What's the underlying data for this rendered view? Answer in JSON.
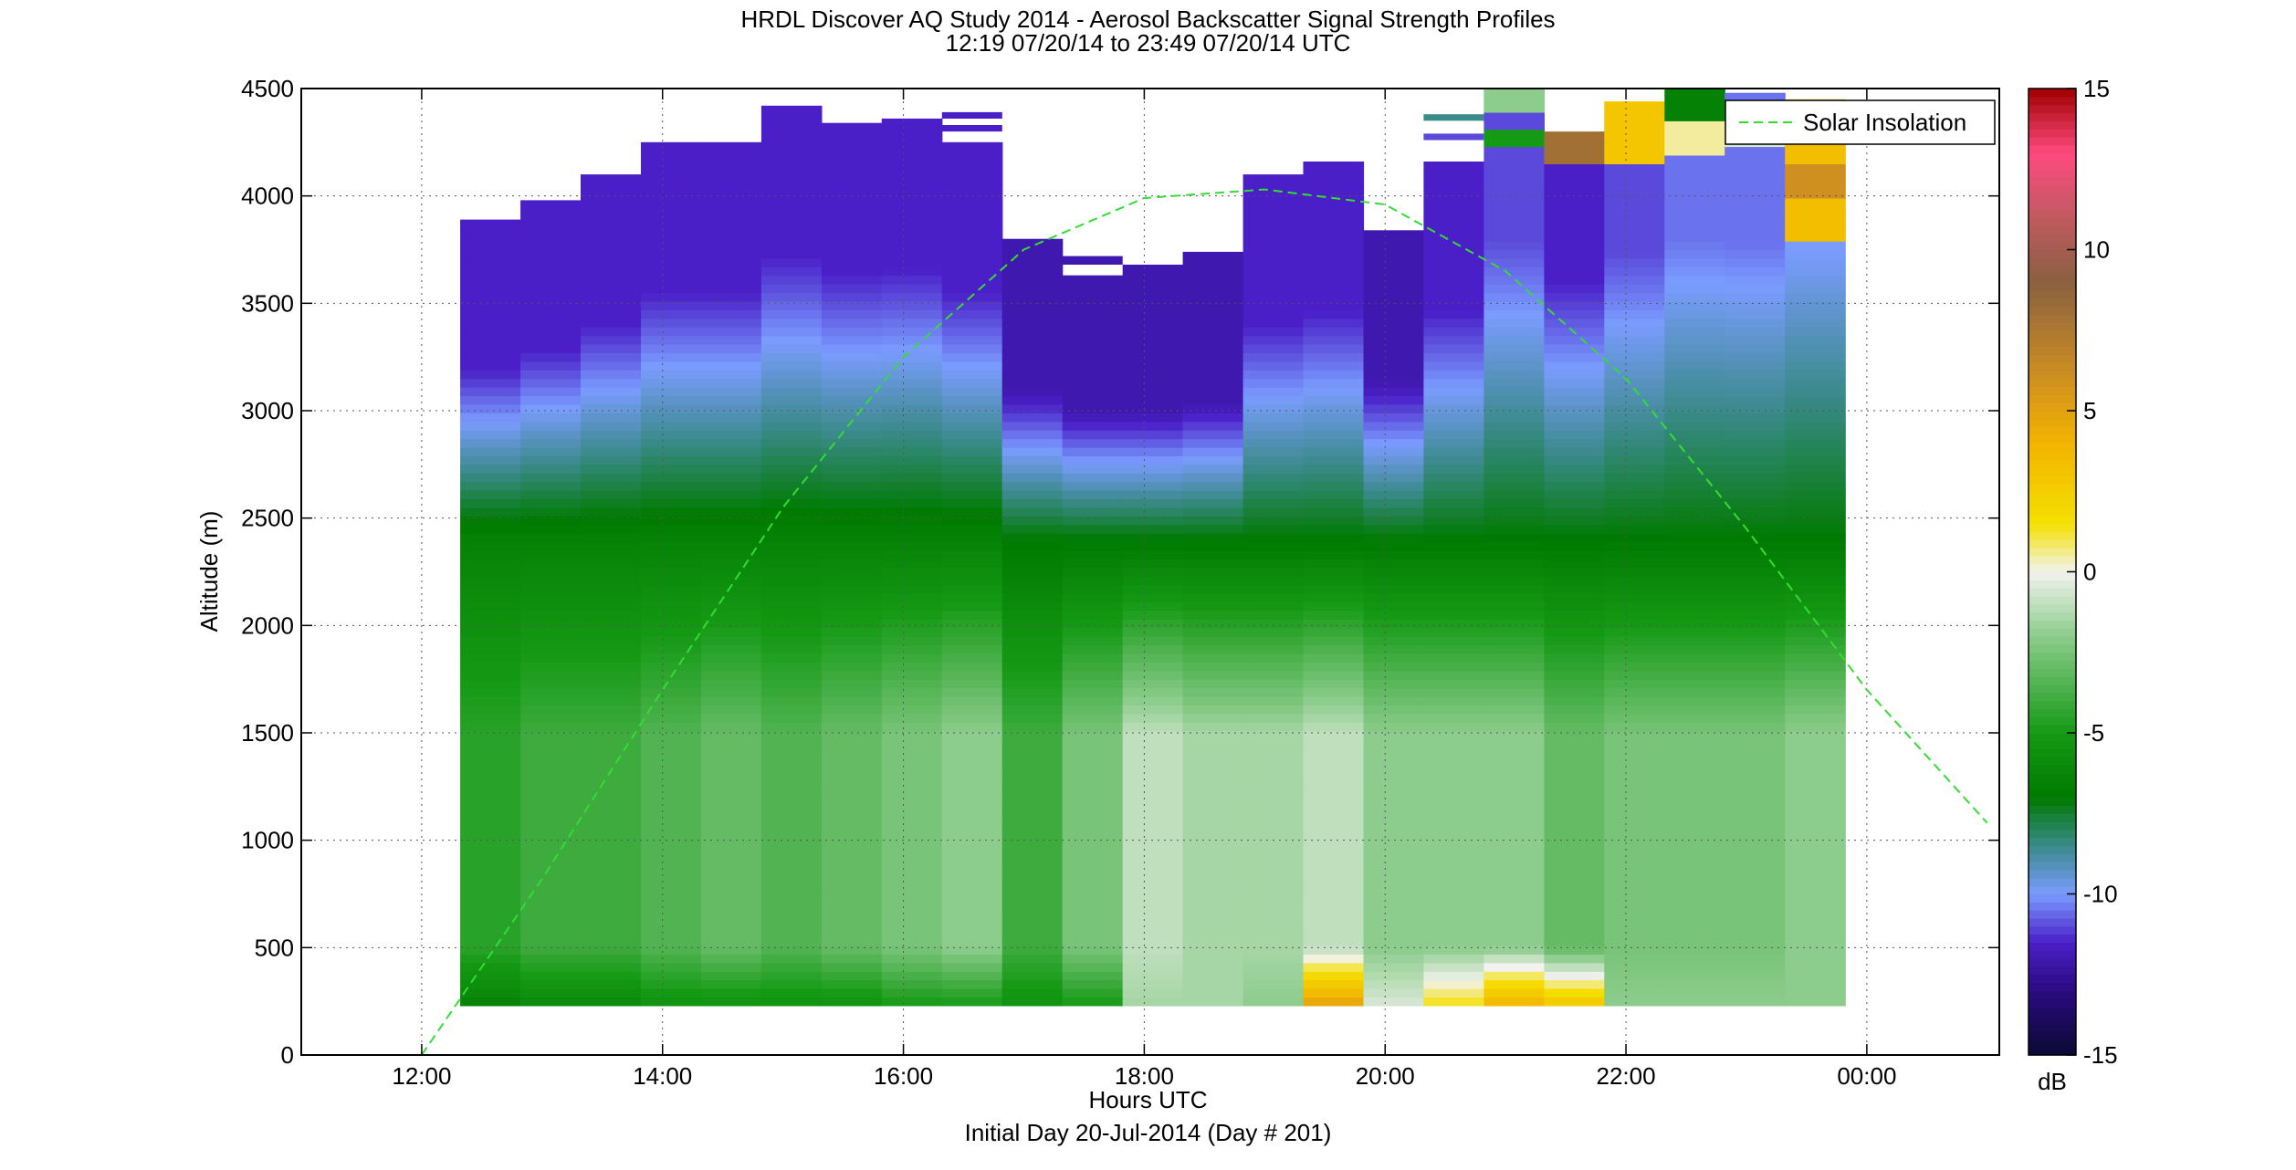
{
  "chart_data": {
    "type": "heatmap",
    "title": "HRDL Discover AQ Study 2014 - Aerosol Backscatter Signal Strength Profiles",
    "subtitle": "12:19 07/20/14 to 23:49 07/20/14  UTC",
    "xlabel": "Hours UTC",
    "xlabel2": "Initial Day 20-Jul-2014 (Day # 201)",
    "ylabel": "Altitude (m)",
    "xlim": [
      11.0,
      25.1
    ],
    "ylim": [
      0,
      4500
    ],
    "x_ticks": [
      12,
      14,
      16,
      18,
      20,
      22,
      24
    ],
    "x_tick_labels": [
      "12:00",
      "14:00",
      "16:00",
      "18:00",
      "20:00",
      "22:00",
      "00:00"
    ],
    "y_ticks": [
      0,
      500,
      1000,
      1500,
      2000,
      2500,
      3000,
      3500,
      4000,
      4500
    ],
    "y_tick_labels": [
      "0",
      "500",
      "1000",
      "1500",
      "2000",
      "2500",
      "3000",
      "3500",
      "4000",
      "4500"
    ],
    "grid": true,
    "colorbar": {
      "range": [
        -15,
        15
      ],
      "ticks": [
        -15,
        -10,
        -5,
        0,
        5,
        10,
        15
      ],
      "tick_labels": [
        "-15",
        "-10",
        "-5",
        "0",
        "5",
        "10",
        "15"
      ],
      "unit": "dB",
      "stops": [
        {
          "v": -15,
          "c": "#0a0a33"
        },
        {
          "v": -13,
          "c": "#2a0a80"
        },
        {
          "v": -11.5,
          "c": "#4a1fc8"
        },
        {
          "v": -10,
          "c": "#7a9cff"
        },
        {
          "v": -8.5,
          "c": "#3a8a8a"
        },
        {
          "v": -7,
          "c": "#007a00"
        },
        {
          "v": -5,
          "c": "#159a15"
        },
        {
          "v": -2,
          "c": "#8ccc8c"
        },
        {
          "v": 0,
          "c": "#f2f2ee"
        },
        {
          "v": 1.5,
          "c": "#f5e000"
        },
        {
          "v": 4,
          "c": "#f2b400"
        },
        {
          "v": 6,
          "c": "#d09020"
        },
        {
          "v": 9,
          "c": "#8a6040"
        },
        {
          "v": 11,
          "c": "#c05a60"
        },
        {
          "v": 13,
          "c": "#ff4a80"
        },
        {
          "v": 15,
          "c": "#a00000"
        }
      ]
    },
    "series": [
      {
        "name": "Solar Insolation",
        "style": "dashed",
        "color": "#33dd33",
        "x": [
          12.0,
          13.0,
          14.0,
          15.0,
          16.0,
          17.0,
          18.0,
          19.0,
          20.0,
          21.0,
          22.0,
          23.0,
          24.0,
          25.0
        ],
        "y": [
          0,
          820,
          1700,
          2550,
          3250,
          3750,
          3990,
          4030,
          3960,
          3650,
          3150,
          2450,
          1700,
          1080
        ]
      }
    ],
    "columns": [
      {
        "x0": 12.32,
        "x1": 12.82,
        "top": 3890,
        "bottom": 230,
        "top_v": -11.5,
        "mid_v": -6.5,
        "low_v": -4.5,
        "base_v": -6.5,
        "bands": []
      },
      {
        "x0": 12.82,
        "x1": 13.32,
        "top": 3980,
        "bottom": 230,
        "top_v": -11.5,
        "mid_v": -6.5,
        "low_v": -4.0,
        "base_v": -6.0,
        "bands": []
      },
      {
        "x0": 13.32,
        "x1": 13.82,
        "top": 4100,
        "bottom": 230,
        "top_v": -11.5,
        "mid_v": -6.5,
        "low_v": -4.0,
        "base_v": -6.0,
        "bands": []
      },
      {
        "x0": 13.82,
        "x1": 14.32,
        "top": 4250,
        "bottom": 230,
        "top_v": -11.5,
        "mid_v": -6.5,
        "low_v": -3.5,
        "base_v": -5.5,
        "bands": []
      },
      {
        "x0": 14.32,
        "x1": 14.82,
        "top": 4250,
        "bottom": 230,
        "top_v": -11.5,
        "mid_v": -6.5,
        "low_v": -3.0,
        "base_v": -5.5,
        "bands": []
      },
      {
        "x0": 14.82,
        "x1": 15.32,
        "top": 4420,
        "bottom": 230,
        "top_v": -11.5,
        "mid_v": -6.5,
        "low_v": -3.5,
        "base_v": -5.5,
        "bands": []
      },
      {
        "x0": 15.32,
        "x1": 15.82,
        "top": 4340,
        "bottom": 230,
        "top_v": -11.5,
        "mid_v": -6.5,
        "low_v": -3.0,
        "base_v": -5.5,
        "bands": []
      },
      {
        "x0": 15.82,
        "x1": 16.32,
        "top": 4360,
        "bottom": 230,
        "top_v": -11.5,
        "mid_v": -6.5,
        "low_v": -2.5,
        "base_v": -5.0,
        "bands": []
      },
      {
        "x0": 16.32,
        "x1": 16.82,
        "top": 4250,
        "bottom": 230,
        "top_v": -11.5,
        "mid_v": -6.5,
        "low_v": -2.0,
        "base_v": -5.0,
        "bands": [
          {
            "y0": 4300,
            "y1": 4330,
            "v": -11.5
          },
          {
            "y0": 4360,
            "y1": 4390,
            "v": -11.5
          }
        ]
      },
      {
        "x0": 16.82,
        "x1": 17.32,
        "top": 3800,
        "bottom": 230,
        "top_v": -12.0,
        "mid_v": -7.0,
        "low_v": -4.0,
        "base_v": -5.5,
        "bands": []
      },
      {
        "x0": 17.32,
        "x1": 17.82,
        "top": 3630,
        "bottom": 230,
        "top_v": -12.0,
        "mid_v": -7.0,
        "low_v": -2.5,
        "base_v": -5.0,
        "bands": [
          {
            "y0": 3680,
            "y1": 3720,
            "v": -12.0
          }
        ]
      },
      {
        "x0": 17.82,
        "x1": 18.32,
        "top": 3680,
        "bottom": 230,
        "top_v": -12.0,
        "mid_v": -7.0,
        "low_v": -1.0,
        "base_v": -1.5,
        "bands": []
      },
      {
        "x0": 18.32,
        "x1": 18.82,
        "top": 3740,
        "bottom": 230,
        "top_v": -12.0,
        "mid_v": -7.0,
        "low_v": -1.5,
        "base_v": -1.5,
        "bands": []
      },
      {
        "x0": 18.82,
        "x1": 19.32,
        "top": 4100,
        "bottom": 230,
        "top_v": -11.5,
        "mid_v": -7.0,
        "low_v": -1.5,
        "base_v": -2.0,
        "bands": []
      },
      {
        "x0": 19.32,
        "x1": 19.82,
        "top": 4160,
        "bottom": 230,
        "top_v": -11.5,
        "mid_v": -7.0,
        "low_v": -1.0,
        "base_v": 5.0,
        "bands": []
      },
      {
        "x0": 19.82,
        "x1": 20.32,
        "top": 3840,
        "bottom": 230,
        "top_v": -12.0,
        "mid_v": -7.0,
        "low_v": -2.0,
        "base_v": -0.5,
        "bands": []
      },
      {
        "x0": 20.32,
        "x1": 20.82,
        "top": 4160,
        "bottom": 230,
        "top_v": -11.5,
        "mid_v": -7.0,
        "low_v": -2.0,
        "base_v": 1.5,
        "bands": [
          {
            "y0": 4350,
            "y1": 4380,
            "v": -8.5
          },
          {
            "y0": 4260,
            "y1": 4290,
            "v": -11.0
          }
        ]
      },
      {
        "x0": 20.82,
        "x1": 21.32,
        "top": 4500,
        "bottom": 230,
        "top_v": -11.0,
        "mid_v": -7.0,
        "low_v": -2.0,
        "base_v": 4.0,
        "bands": [
          {
            "y0": 4250,
            "y1": 4310,
            "v": -5.0
          },
          {
            "y0": 4380,
            "y1": 4500,
            "v": -2.0
          }
        ]
      },
      {
        "x0": 21.32,
        "x1": 21.82,
        "top": 4300,
        "bottom": 230,
        "top_v": -11.5,
        "mid_v": -7.0,
        "low_v": -3.0,
        "base_v": 3.0,
        "bands": [
          {
            "y0": 4150,
            "y1": 4300,
            "v": 8.0
          }
        ]
      },
      {
        "x0": 21.82,
        "x1": 22.32,
        "top": 4440,
        "bottom": 230,
        "top_v": -11.0,
        "mid_v": -7.0,
        "low_v": -2.5,
        "base_v": -2.0,
        "bands": [
          {
            "y0": 4150,
            "y1": 4440,
            "v": 3.0
          }
        ]
      },
      {
        "x0": 22.32,
        "x1": 22.82,
        "top": 4500,
        "bottom": 230,
        "top_v": -10.5,
        "mid_v": -7.0,
        "low_v": -2.5,
        "base_v": -2.0,
        "bands": [
          {
            "y0": 4330,
            "y1": 4500,
            "v": -6.5
          },
          {
            "y0": 4180,
            "y1": 4330,
            "v": 0.5
          }
        ]
      },
      {
        "x0": 22.82,
        "x1": 23.32,
        "top": 4480,
        "bottom": 230,
        "top_v": -10.5,
        "mid_v": -7.0,
        "low_v": -2.5,
        "base_v": -2.0,
        "bands": [
          {
            "y0": 4230,
            "y1": 4330,
            "v": -0.5
          }
        ]
      },
      {
        "x0": 23.32,
        "x1": 23.82,
        "top": 4450,
        "bottom": 230,
        "top_v": -10.0,
        "mid_v": -7.0,
        "low_v": -2.0,
        "base_v": -2.0,
        "bands": [
          {
            "y0": 3800,
            "y1": 4450,
            "v": 3.5
          },
          {
            "y0": 4000,
            "y1": 4150,
            "v": 6.0
          }
        ]
      }
    ]
  }
}
